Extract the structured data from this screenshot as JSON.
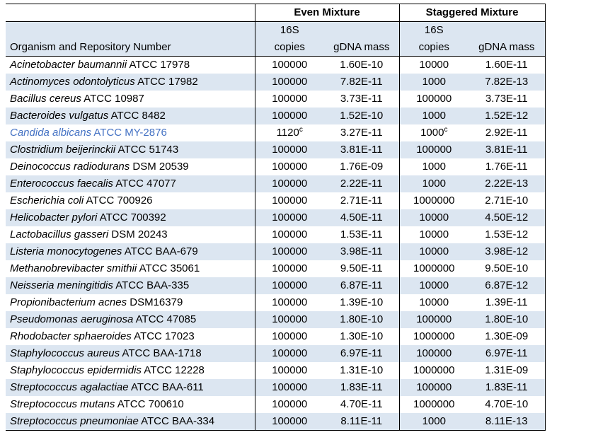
{
  "colors": {
    "stripe": "#DCE6F1",
    "border": "#000000",
    "highlight_text": "#4472C4"
  },
  "table": {
    "header": {
      "organism": "Organism and Repository Number",
      "even_group": "Even Mixture",
      "staggered_group": "Staggered Mixture",
      "sixteen_s": "16S",
      "copies": "copies",
      "gdna_mass": "gDNA mass"
    },
    "rows": [
      {
        "name": "Acinetobacter baumannii",
        "strain": "ATCC 17978",
        "even_copies": "100000",
        "even_mass": "1.60E-10",
        "stag_copies": "10000",
        "stag_mass": "1.60E-11"
      },
      {
        "name": "Actinomyces odontolyticus",
        "strain": "ATCC 17982",
        "even_copies": "100000",
        "even_mass": "7.82E-11",
        "stag_copies": "1000",
        "stag_mass": "7.82E-13"
      },
      {
        "name": "Bacillus cereus",
        "strain": "ATCC 10987",
        "even_copies": "100000",
        "even_mass": "3.73E-11",
        "stag_copies": "100000",
        "stag_mass": "3.73E-11"
      },
      {
        "name": "Bacteroides vulgatus",
        "strain": "ATCC 8482",
        "even_copies": "100000",
        "even_mass": "1.52E-10",
        "stag_copies": "1000",
        "stag_mass": "1.52E-12"
      },
      {
        "name": "Candida albicans",
        "strain": "ATCC MY-2876",
        "highlight": true,
        "even_copies": "1120",
        "even_copies_sup": "c",
        "even_mass": "3.27E-11",
        "stag_copies": "1000",
        "stag_copies_sup": "c",
        "stag_mass": "2.92E-11"
      },
      {
        "name": "Clostridium beijerinckii",
        "strain": "ATCC 51743",
        "even_copies": "100000",
        "even_mass": "3.81E-11",
        "stag_copies": "100000",
        "stag_mass": "3.81E-11"
      },
      {
        "name": "Deinococcus radiodurans",
        "strain": "DSM 20539",
        "even_copies": "100000",
        "even_mass": "1.76E-09",
        "stag_copies": "1000",
        "stag_mass": "1.76E-11"
      },
      {
        "name": "Enterococcus faecalis",
        "strain": "ATCC 47077",
        "even_copies": "100000",
        "even_mass": "2.22E-11",
        "stag_copies": "1000",
        "stag_mass": "2.22E-13"
      },
      {
        "name": "Escherichia coli",
        "strain": "ATCC 700926",
        "even_copies": "100000",
        "even_mass": "2.71E-11",
        "stag_copies": "1000000",
        "stag_mass": "2.71E-10"
      },
      {
        "name": "Helicobacter pylori",
        "strain": "ATCC 700392",
        "even_copies": "100000",
        "even_mass": "4.50E-11",
        "stag_copies": "10000",
        "stag_mass": "4.50E-12"
      },
      {
        "name": "Lactobacillus gasseri",
        "strain": "DSM 20243",
        "even_copies": "100000",
        "even_mass": "1.53E-11",
        "stag_copies": "10000",
        "stag_mass": "1.53E-12"
      },
      {
        "name": "Listeria monocytogenes",
        "strain": "ATCC BAA-679",
        "even_copies": "100000",
        "even_mass": "3.98E-11",
        "stag_copies": "10000",
        "stag_mass": "3.98E-12"
      },
      {
        "name": "Methanobrevibacter smithii",
        "strain": "ATCC 35061",
        "even_copies": "100000",
        "even_mass": "9.50E-11",
        "stag_copies": "1000000",
        "stag_mass": "9.50E-10"
      },
      {
        "name": "Neisseria meningitidis",
        "strain": "ATCC BAA-335",
        "even_copies": "100000",
        "even_mass": "6.87E-11",
        "stag_copies": "10000",
        "stag_mass": "6.87E-12"
      },
      {
        "name": "Propionibacterium acnes",
        "strain": "DSM16379",
        "even_copies": "100000",
        "even_mass": "1.39E-10",
        "stag_copies": "10000",
        "stag_mass": "1.39E-11"
      },
      {
        "name": "Pseudomonas aeruginosa",
        "strain": "ATCC 47085",
        "even_copies": "100000",
        "even_mass": "1.80E-10",
        "stag_copies": "100000",
        "stag_mass": "1.80E-10"
      },
      {
        "name": "Rhodobacter sphaeroides",
        "strain": "ATCC 17023",
        "even_copies": "100000",
        "even_mass": "1.30E-10",
        "stag_copies": "1000000",
        "stag_mass": "1.30E-09"
      },
      {
        "name": "Staphylococcus aureus",
        "strain": "ATCC BAA-1718",
        "even_copies": "100000",
        "even_mass": "6.97E-11",
        "stag_copies": "100000",
        "stag_mass": "6.97E-11"
      },
      {
        "name": "Staphylococcus epidermidis",
        "strain": "ATCC 12228",
        "even_copies": "100000",
        "even_mass": "1.31E-10",
        "stag_copies": "1000000",
        "stag_mass": "1.31E-09"
      },
      {
        "name": "Streptococcus agalactiae",
        "strain": "ATCC BAA-611",
        "even_copies": "100000",
        "even_mass": "1.83E-11",
        "stag_copies": "100000",
        "stag_mass": "1.83E-11"
      },
      {
        "name": "Streptococcus mutans",
        "strain": "ATCC 700610",
        "even_copies": "100000",
        "even_mass": "4.70E-11",
        "stag_copies": "1000000",
        "stag_mass": "4.70E-10"
      },
      {
        "name": "Streptococcus pneumoniae",
        "strain": "ATCC BAA-334",
        "even_copies": "100000",
        "even_mass": "8.11E-11",
        "stag_copies": "1000",
        "stag_mass": "8.11E-13"
      }
    ]
  }
}
